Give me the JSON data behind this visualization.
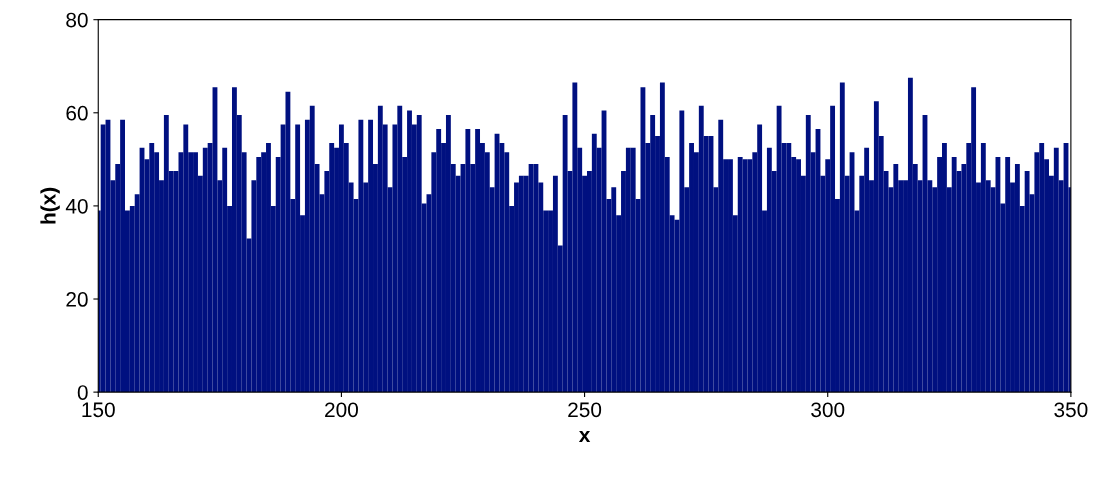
{
  "chart_data": {
    "type": "bar",
    "xlabel": "x",
    "ylabel": "h(x)",
    "color": "#001080",
    "x": [
      150,
      151,
      152,
      153,
      154,
      155,
      156,
      157,
      158,
      159,
      160,
      161,
      162,
      163,
      164,
      165,
      166,
      167,
      168,
      169,
      170,
      171,
      172,
      173,
      174,
      175,
      176,
      177,
      178,
      179,
      180,
      181,
      182,
      183,
      184,
      185,
      186,
      187,
      188,
      189,
      190,
      191,
      192,
      193,
      194,
      195,
      196,
      197,
      198,
      199,
      200,
      201,
      202,
      203,
      204,
      205,
      206,
      207,
      208,
      209,
      210,
      211,
      212,
      213,
      214,
      215,
      216,
      217,
      218,
      219,
      220,
      221,
      222,
      223,
      224,
      225,
      226,
      227,
      228,
      229,
      230,
      231,
      232,
      233,
      234,
      235,
      236,
      237,
      238,
      239,
      240,
      241,
      242,
      243,
      244,
      245,
      246,
      247,
      248,
      249,
      250,
      251,
      252,
      253,
      254,
      255,
      256,
      257,
      258,
      259,
      260,
      261,
      262,
      263,
      264,
      265,
      266,
      267,
      268,
      269,
      270,
      271,
      272,
      273,
      274,
      275,
      276,
      277,
      278,
      279,
      280,
      281,
      282,
      283,
      284,
      285,
      286,
      287,
      288,
      289,
      290,
      291,
      292,
      293,
      294,
      295,
      296,
      297,
      298,
      299,
      300,
      301,
      302,
      303,
      304,
      305,
      306,
      307,
      308,
      309,
      310,
      311,
      312,
      313,
      314,
      315,
      316,
      317,
      318,
      319,
      320,
      321,
      322,
      323,
      324,
      325,
      326,
      327,
      328,
      329,
      330,
      331,
      332,
      333,
      334,
      335,
      336,
      337,
      338,
      339,
      340,
      341,
      342,
      343,
      344,
      345,
      346,
      347,
      348,
      349,
      350
    ],
    "values": [
      39,
      57.5,
      58.5,
      45.5,
      49,
      58.5,
      39,
      40,
      42.5,
      52.5,
      50,
      53.5,
      51.5,
      45.5,
      59.5,
      47.5,
      47.5,
      51.5,
      57.5,
      51.5,
      51.5,
      46.5,
      52.5,
      53.5,
      65.5,
      45.5,
      52.5,
      40,
      65.5,
      59.5,
      51.5,
      33,
      45.5,
      50.5,
      51.5,
      53.5,
      40,
      50.5,
      57.5,
      64.5,
      41.5,
      57.5,
      38,
      58.5,
      61.5,
      49,
      42.5,
      47.5,
      53.5,
      52.5,
      57.5,
      53.5,
      45,
      41.5,
      58.5,
      45,
      58.5,
      49,
      61.5,
      57.5,
      44,
      57.5,
      61.5,
      50.5,
      60.5,
      57.5,
      59.5,
      40.5,
      42.5,
      51.5,
      56.5,
      53.5,
      59.5,
      49,
      46.5,
      49,
      56.5,
      49,
      56.5,
      53.5,
      51.5,
      44,
      55.5,
      53.5,
      51.5,
      40,
      45,
      46.5,
      46.5,
      49,
      49,
      45,
      39,
      39,
      46.5,
      31.5,
      59.5,
      47.5,
      66.5,
      52.5,
      46.5,
      47.5,
      55.5,
      52.5,
      60.5,
      41.5,
      44,
      38,
      47.5,
      52.5,
      52.5,
      41.5,
      65.5,
      53.5,
      59.5,
      55,
      66.5,
      50.5,
      38,
      37,
      60.5,
      44,
      53.5,
      51.5,
      61.5,
      55,
      55,
      44,
      58.5,
      50,
      50,
      38,
      50.5,
      50,
      50,
      51.5,
      57.5,
      39,
      52.5,
      47.5,
      61.5,
      53.5,
      53.5,
      50.5,
      50,
      46.5,
      59.5,
      51.5,
      56.5,
      46.5,
      50,
      61.5,
      41.5,
      66.5,
      46.5,
      51.5,
      39,
      46.5,
      52.5,
      45.5,
      62.5,
      55,
      47.5,
      44,
      49,
      45.5,
      45.5,
      67.5,
      49,
      45.5,
      59.5,
      45.5,
      44,
      50.5,
      53.5,
      44,
      50.5,
      47.5,
      49,
      53.5,
      65.5,
      45,
      53.5,
      45.5,
      44,
      50.5,
      40.5,
      50.5,
      45,
      49,
      40,
      47.5,
      42.5,
      51.5,
      53.5,
      50,
      46.5,
      52.5,
      45.5,
      53.5,
      44
    ],
    "xlim": [
      150,
      350
    ],
    "xticks": [
      150,
      200,
      250,
      300,
      350
    ],
    "ylim": [
      0,
      80
    ],
    "yticks": [
      0,
      20,
      40,
      60,
      80
    ],
    "grid": false,
    "legend": false
  }
}
